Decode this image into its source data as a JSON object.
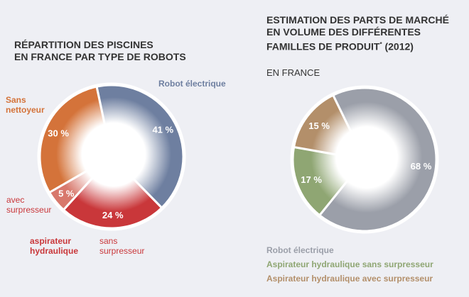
{
  "chart_data": [
    {
      "type": "pie",
      "title": "RÉPARTITION DES PISCINES\nEN FRANCE PAR TYPE DE ROBOTS",
      "slices": [
        {
          "label": "Robot électrique",
          "value": 41,
          "display": "41 %",
          "color": "#6e7fa0"
        },
        {
          "label": "sans surpresseur",
          "value": 24,
          "display": "24 %",
          "color": "#c9373a"
        },
        {
          "label": "avec surpresseur",
          "value": 5,
          "display": "5 %",
          "color": "#d8786c"
        },
        {
          "label": "Sans nettoyeur",
          "value": 30,
          "display": "30 %",
          "color": "#d4733a"
        }
      ],
      "group_label": "aspirateur\nhydraulique",
      "group_color": "#c9373a"
    },
    {
      "type": "pie",
      "title": "ESTIMATION DES PARTS DE MARCHÉ\nEN VOLUME DES DIFFÉRENTES\nFAMILLES DE PRODUIT",
      "title_sup": "*",
      "title_suffix": " (2012)",
      "subtitle": "EN FRANCE",
      "slices": [
        {
          "label": "Robot électrique",
          "value": 68,
          "display": "68 %",
          "color": "#9b9fa9"
        },
        {
          "label": "Aspirateur hydraulique sans surpresseur",
          "value": 17,
          "display": "17 %",
          "color": "#8fa673"
        },
        {
          "label": "Aspirateur hydraulique avec surpresseur",
          "value": 15,
          "display": "15 %",
          "color": "#b38f6a"
        }
      ],
      "legend_placement": "bottom"
    }
  ]
}
